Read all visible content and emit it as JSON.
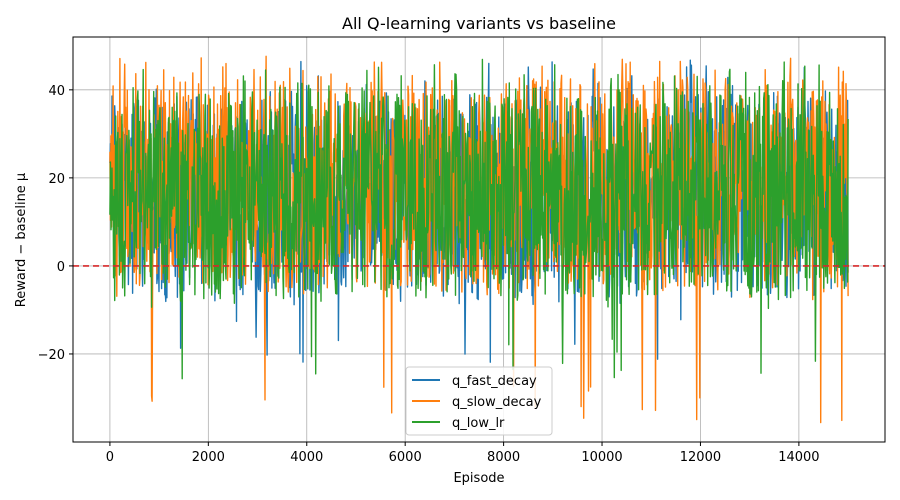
{
  "chart_data": {
    "type": "line",
    "title": "All Q-learning variants vs baseline",
    "xlabel": "Episode",
    "ylabel": "Reward − baseline μ",
    "xlim": [
      -750,
      15750
    ],
    "ylim": [
      -40,
      52
    ],
    "x_ticks": [
      0,
      2000,
      4000,
      6000,
      8000,
      10000,
      12000,
      14000
    ],
    "y_ticks": [
      -20,
      0,
      20,
      40
    ],
    "x_tick_labels": [
      "0",
      "2000",
      "4000",
      "6000",
      "8000",
      "10000",
      "12000",
      "14000"
    ],
    "y_tick_labels": [
      "−20",
      "0",
      "20",
      "40"
    ],
    "grid": true,
    "legend_position": "lower-center",
    "episodes": 15000,
    "baseline": {
      "value": 0,
      "color": "#d62728",
      "style": "dashed"
    },
    "series": [
      {
        "name": "q_fast_decay",
        "color": "#1f77b4",
        "mean": 18,
        "typical_min": -10,
        "typical_max": 42,
        "min": -22,
        "max": 47
      },
      {
        "name": "q_slow_decay",
        "color": "#ff7f0e",
        "mean": 19,
        "typical_min": -8,
        "typical_max": 45,
        "min": -36,
        "max": 48
      },
      {
        "name": "q_low_lr",
        "color": "#2ca02c",
        "mean": 18,
        "typical_min": -10,
        "typical_max": 43,
        "min": -26,
        "max": 47
      }
    ]
  }
}
